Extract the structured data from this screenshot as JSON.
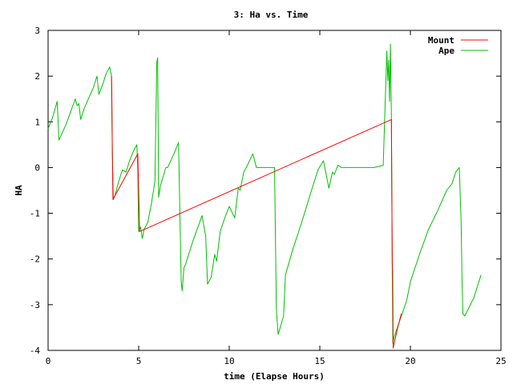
{
  "chart_data": {
    "type": "line",
    "title": "3: Ha vs. Time",
    "xlabel": "time (Elapse Hours)",
    "ylabel": "HA",
    "xlim": [
      0,
      25
    ],
    "ylim": [
      -4,
      3
    ],
    "xticks": [
      0,
      5,
      10,
      15,
      20,
      25
    ],
    "yticks": [
      -4,
      -3,
      -2,
      -1,
      0,
      1,
      2,
      3
    ],
    "grid": false,
    "legend_position": "top-right",
    "series": [
      {
        "name": "Mount",
        "color": "#ff0000",
        "x": [
          3.5,
          3.52,
          3.55,
          3.58,
          4.95,
          5.0,
          5.05,
          18.95,
          19.0,
          19.02,
          19.05,
          19.1,
          19.3,
          19.5
        ],
        "y": [
          2.0,
          1.4,
          0.3,
          -0.7,
          0.3,
          -0.5,
          -1.4,
          1.05,
          -2.1,
          -2.3,
          -3.95,
          -3.85,
          -3.5,
          -3.2
        ]
      },
      {
        "name": "Ape",
        "color": "#00c000",
        "x": [
          0.0,
          0.25,
          0.5,
          0.6,
          1.0,
          1.5,
          1.6,
          1.7,
          1.8,
          2.0,
          2.5,
          2.7,
          2.8,
          3.0,
          3.2,
          3.4,
          3.5,
          3.55,
          3.6,
          3.7,
          3.9,
          4.1,
          4.3,
          4.5,
          4.7,
          4.9,
          4.95,
          5.0,
          5.1,
          5.2,
          5.3,
          5.5,
          5.7,
          5.9,
          6.0,
          6.05,
          6.1,
          6.2,
          6.5,
          6.6,
          7.0,
          7.2,
          7.35,
          7.4,
          7.5,
          7.6,
          8.0,
          8.5,
          8.7,
          8.8,
          9.0,
          9.2,
          9.3,
          9.5,
          9.8,
          10.0,
          10.3,
          10.5,
          10.6,
          10.8,
          11.0,
          11.3,
          11.5,
          11.6,
          12.0,
          12.5,
          12.6,
          12.7,
          13.0,
          13.1,
          13.5,
          14.0,
          14.5,
          14.9,
          15.2,
          15.5,
          15.7,
          15.8,
          16.0,
          16.2,
          16.5,
          17.0,
          17.5,
          18.0,
          18.5,
          18.7,
          18.75,
          18.8,
          18.85,
          18.9,
          18.95,
          19.0,
          19.03,
          19.1,
          19.5,
          19.8,
          20.0,
          20.5,
          21.0,
          21.5,
          22.0,
          22.3,
          22.5,
          22.7,
          22.8,
          22.85,
          22.9,
          23.0,
          23.5,
          23.9
        ],
        "y": [
          0.85,
          1.1,
          1.45,
          0.6,
          0.95,
          1.5,
          1.35,
          1.4,
          1.05,
          1.3,
          1.75,
          2.0,
          1.6,
          1.8,
          2.05,
          2.2,
          2.0,
          0.3,
          -0.7,
          -0.6,
          -0.3,
          -0.05,
          -0.1,
          0.15,
          0.35,
          0.5,
          -0.05,
          -1.4,
          -1.3,
          -1.55,
          -1.35,
          -1.2,
          -0.8,
          -0.3,
          2.3,
          2.4,
          -0.65,
          -0.4,
          0.0,
          0.0,
          0.35,
          0.55,
          -2.5,
          -2.7,
          -2.2,
          -2.1,
          -1.6,
          -1.05,
          -1.5,
          -2.55,
          -2.4,
          -1.9,
          -2.05,
          -1.4,
          -1.05,
          -0.85,
          -1.1,
          -0.45,
          -0.5,
          -0.1,
          0.05,
          0.3,
          0.0,
          0.0,
          0.0,
          0.0,
          -3.1,
          -3.65,
          -3.25,
          -2.35,
          -1.8,
          -1.2,
          -0.55,
          -0.05,
          0.15,
          -0.45,
          -0.1,
          -0.15,
          0.05,
          0.0,
          0.0,
          0.0,
          0.0,
          0.0,
          0.05,
          2.55,
          1.9,
          2.35,
          1.45,
          2.7,
          1.1,
          -2.3,
          -3.85,
          -3.7,
          -3.25,
          -2.9,
          -2.5,
          -1.9,
          -1.35,
          -0.95,
          -0.5,
          -0.35,
          -0.1,
          0.0,
          -1.2,
          -2.45,
          -3.2,
          -3.25,
          -2.85,
          -2.35
        ]
      }
    ]
  }
}
